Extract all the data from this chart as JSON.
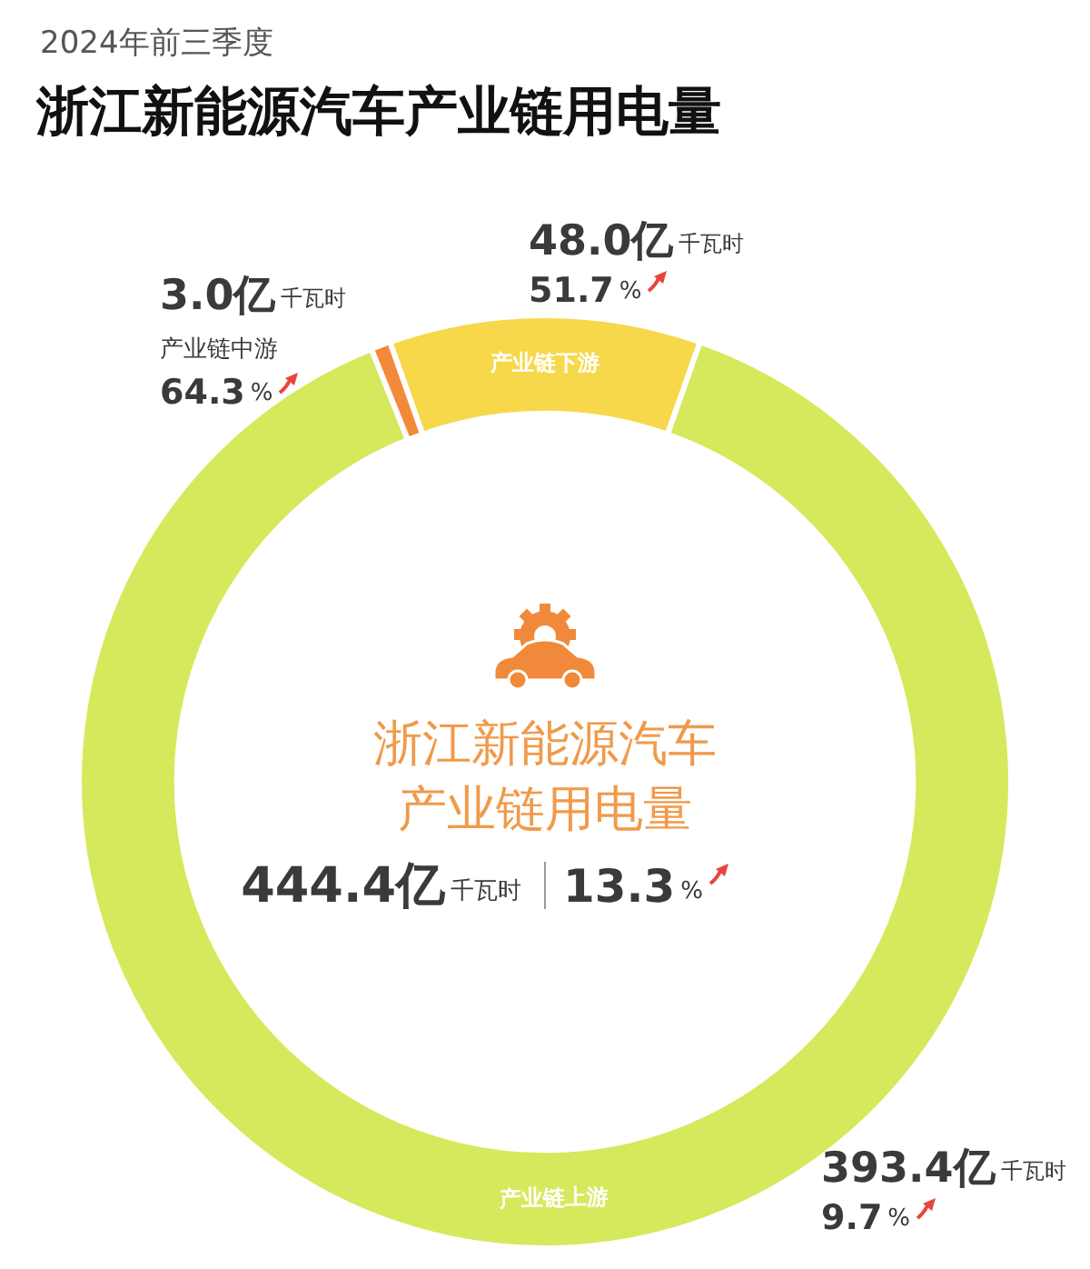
{
  "chart_data": {
    "type": "donut",
    "title": "浙江新能源汽车产业链用电量",
    "subtitle": "2024年前三季度",
    "categories": [
      "产业链下游",
      "产业链上游",
      "产业链中游"
    ],
    "values": [
      48.0,
      393.4,
      3.0
    ],
    "colors": [
      "#f7d84a",
      "#d6e95c",
      "#f28a3a"
    ],
    "value_labels": [
      "48.0亿 千瓦时",
      "393.4亿 千瓦时",
      "3.0亿 千瓦时"
    ],
    "annotations": [
      "51.7%",
      "9.7%",
      "64.3%",
      "浙江新能源汽车",
      "产业链用电量",
      "444.4亿 千瓦时",
      "13.3%"
    ],
    "legend": false
  }
}
